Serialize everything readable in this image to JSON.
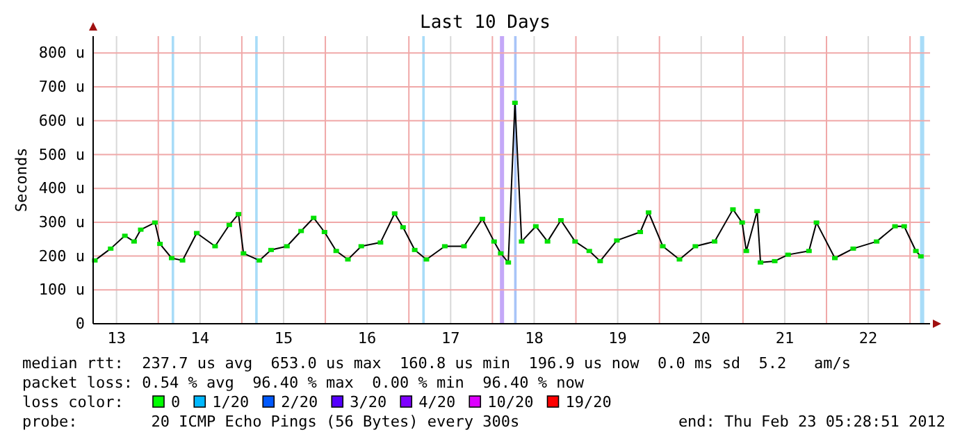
{
  "chart_data": {
    "type": "line",
    "title": "Last 10 Days",
    "ylabel": "Seconds",
    "xlim": [
      12.72,
      22.74
    ],
    "ylim": [
      0,
      850
    ],
    "xticks": [
      13,
      {
        "value": 13.5,
        "label": null
      },
      14,
      {
        "value": 14.5,
        "label": null
      },
      15,
      {
        "value": 15.5,
        "label": null
      },
      16,
      {
        "value": 16.5,
        "label": null
      },
      17,
      {
        "value": 17.5,
        "label": null
      },
      18,
      {
        "value": 18.5,
        "label": null
      },
      19,
      {
        "value": 19.5,
        "label": null
      },
      20,
      {
        "value": 20.5,
        "label": null
      },
      21,
      {
        "value": 21.5,
        "label": null
      },
      22,
      {
        "value": 22.5,
        "label": null
      }
    ],
    "yticks": [
      {
        "value": 0,
        "label": "0"
      },
      {
        "value": 100,
        "label": "100 u"
      },
      {
        "value": 200,
        "label": "200 u"
      },
      {
        "value": 300,
        "label": "300 u"
      },
      {
        "value": 400,
        "label": "400 u"
      },
      {
        "value": 500,
        "label": "500 u"
      },
      {
        "value": 600,
        "label": "600 u"
      },
      {
        "value": 700,
        "label": "700 u"
      },
      {
        "value": 800,
        "label": "800 u"
      }
    ],
    "grid": true,
    "marker": "square",
    "line_style": "solid",
    "series": [
      {
        "color": "#00e000",
        "x": [
          12.74,
          12.93,
          13.1,
          13.21,
          13.29,
          13.46,
          13.52,
          13.66,
          13.79,
          13.96,
          14.18,
          14.35,
          14.46,
          14.52,
          14.71,
          14.85,
          15.04,
          15.21,
          15.36,
          15.49,
          15.63,
          15.77,
          15.93,
          16.16,
          16.33,
          16.43,
          16.57,
          16.71,
          16.93,
          17.16,
          17.38,
          17.52,
          17.6,
          17.69,
          17.77,
          17.85,
          18.02,
          18.16,
          18.32,
          18.49,
          18.66,
          18.79,
          18.99,
          19.27,
          19.37,
          19.54,
          19.74,
          19.93,
          20.16,
          20.38,
          20.49,
          20.54,
          20.67,
          20.71,
          20.88,
          21.04,
          21.29,
          21.38,
          21.6,
          21.82,
          22.1,
          22.32,
          22.43,
          22.57,
          22.63
        ],
        "values": [
          187,
          222,
          260,
          243,
          278,
          299,
          236,
          194,
          187,
          268,
          229,
          292,
          324,
          208,
          187,
          218,
          229,
          274,
          313,
          271,
          215,
          190,
          229,
          240,
          326,
          285,
          218,
          190,
          229,
          229,
          310,
          243,
          208,
          181,
          653,
          243,
          288,
          243,
          306,
          243,
          215,
          185,
          246,
          271,
          329,
          229,
          190,
          229,
          243,
          338,
          299,
          215,
          333,
          181,
          185,
          204,
          215,
          299,
          194,
          222,
          243,
          288,
          288,
          215,
          199
        ]
      }
    ],
    "bands": [
      {
        "axis": "x",
        "from": 13.66,
        "to": 13.69,
        "color": "#a8dcf8"
      },
      {
        "axis": "x",
        "from": 14.66,
        "to": 14.69,
        "color": "#a8dcf8"
      },
      {
        "axis": "x",
        "from": 16.66,
        "to": 16.69,
        "color": "#a8dcf8"
      },
      {
        "axis": "x",
        "from": 17.59,
        "to": 17.64,
        "color": "#c4a8f8"
      },
      {
        "axis": "x",
        "from": 17.76,
        "to": 17.79,
        "color": "#a8c4f8"
      },
      {
        "axis": "x",
        "from": 22.62,
        "to": 22.67,
        "color": "#a8dcf8"
      }
    ],
    "annotations": [
      "median rtt:  237.7 us avg  653.0 us max  160.8 us min  196.9 us now  0.0 ms sd  5.2   am/s",
      "packet loss: 0.54 % avg  96.40 % max  0.00 % min  96.40 % now",
      "loss color:",
      "0",
      "1/20",
      "2/20",
      "3/20",
      "4/20",
      "10/20",
      "19/20",
      "probe:        20 ICMP Echo Pings (56 Bytes) every 300s",
      "end: Thu Feb 23 05:28:51 2012"
    ]
  }
}
